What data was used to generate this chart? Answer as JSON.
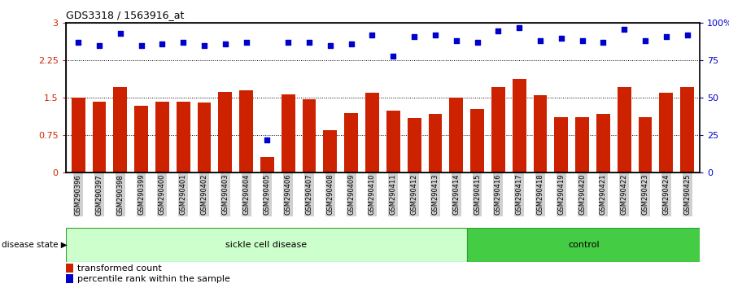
{
  "title": "GDS3318 / 1563916_at",
  "samples": [
    "GSM290396",
    "GSM290397",
    "GSM290398",
    "GSM290399",
    "GSM290400",
    "GSM290401",
    "GSM290402",
    "GSM290403",
    "GSM290404",
    "GSM290405",
    "GSM290406",
    "GSM290407",
    "GSM290408",
    "GSM290409",
    "GSM290410",
    "GSM290411",
    "GSM290412",
    "GSM290413",
    "GSM290414",
    "GSM290415",
    "GSM290416",
    "GSM290417",
    "GSM290418",
    "GSM290419",
    "GSM290420",
    "GSM290421",
    "GSM290422",
    "GSM290423",
    "GSM290424",
    "GSM290425"
  ],
  "bar_values": [
    1.5,
    1.42,
    1.72,
    1.35,
    1.43,
    1.43,
    1.4,
    1.62,
    1.65,
    0.32,
    1.57,
    1.48,
    0.85,
    1.2,
    1.6,
    1.25,
    1.1,
    1.18,
    1.5,
    1.28,
    1.72,
    1.88,
    1.55,
    1.12,
    1.12,
    1.18,
    1.72,
    1.12,
    1.6,
    1.72
  ],
  "scatter_pct": [
    87,
    85,
    93,
    85,
    86,
    87,
    85,
    86,
    87,
    22,
    87,
    87,
    85,
    86,
    92,
    78,
    91,
    92,
    88,
    87,
    95,
    97,
    88,
    90,
    88,
    87,
    96,
    88,
    91,
    92
  ],
  "sickle_count": 19,
  "control_count": 11,
  "bar_color": "#cc2200",
  "scatter_color": "#0000cc",
  "sickle_color": "#ccffcc",
  "control_color": "#44cc44",
  "ylim_left": [
    0,
    3
  ],
  "ylim_right": [
    0,
    100
  ],
  "yticks_left": [
    0,
    0.75,
    1.5,
    2.25,
    3.0
  ],
  "ytick_labels_left": [
    "0",
    "0.75",
    "1.5",
    "2.25",
    "3"
  ],
  "yticks_right": [
    0,
    25,
    50,
    75,
    100
  ],
  "ytick_labels_right": [
    "0",
    "25",
    "50",
    "75",
    "100%"
  ],
  "hlines": [
    0.75,
    1.5,
    2.25
  ],
  "legend_bar_label": "transformed count",
  "legend_scatter_label": "percentile rank within the sample",
  "disease_state_label": "disease state",
  "sickle_label": "sickle cell disease",
  "control_label": "control"
}
